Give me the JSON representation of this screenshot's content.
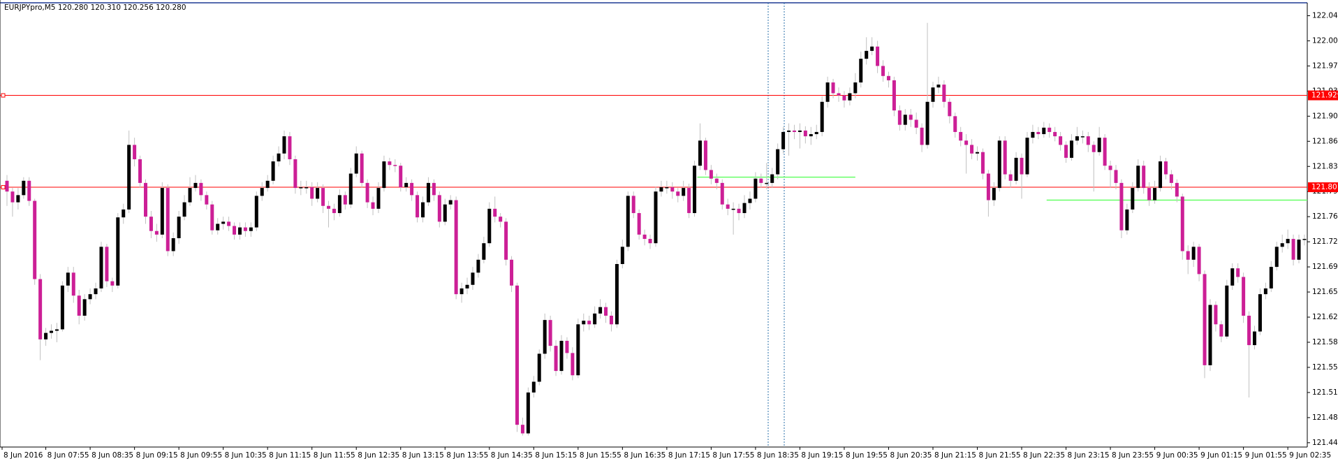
{
  "chart_data": {
    "type": "candlestick",
    "title": "EURJPYpro,M5  120.280 120.310 120.256 120.280",
    "up_color": "#000000",
    "down_color": "#cc1f96",
    "ylim": [
      121.439,
      122.058
    ],
    "yticks": [
      {
        "value": 122.04,
        "label": "122.040"
      },
      122.005,
      {
        "value": 121.97,
        "label": "121.970"
      },
      121.935,
      {
        "value": 121.9,
        "label": "121.900"
      },
      121.865,
      {
        "value": 121.83,
        "label": "121.830"
      },
      121.795,
      {
        "value": 121.76,
        "label": "121.760"
      },
      121.725,
      {
        "value": 121.69,
        "label": "121.690"
      },
      121.655,
      {
        "value": 121.62,
        "label": "121.620"
      },
      121.585,
      {
        "value": 121.55,
        "label": "121.550"
      },
      121.515,
      {
        "value": 121.48,
        "label": "121.480"
      },
      121.445
    ],
    "x_tick_labels": [
      "8 Jun 2016",
      "8 Jun 07:55",
      "8 Jun 08:35",
      "8 Jun 09:15",
      "8 Jun 09:55",
      "8 Jun 10:35",
      "8 Jun 11:15",
      "8 Jun 11:55",
      "8 Jun 12:35",
      "8 Jun 13:15",
      "8 Jun 13:55",
      "8 Jun 14:35",
      "8 Jun 15:15",
      "8 Jun 15:55",
      "8 Jun 16:35",
      "8 Jun 17:15",
      "8 Jun 17:55",
      "8 Jun 18:35",
      "8 Jun 19:15",
      "8 Jun 19:55",
      "8 Jun 20:35",
      "8 Jun 21:15",
      "8 Jun 21:55",
      "8 Jun 22:35",
      "8 Jun 23:15",
      "8 Jun 23:55",
      "9 Jun 00:35",
      "9 Jun 01:15",
      "9 Jun 01:55",
      "9 Jun 02:35"
    ],
    "price_lines": [
      {
        "value": 121.929,
        "color": "#ff0000"
      },
      {
        "value": 121.801,
        "color": "#ff0000"
      }
    ],
    "level_lines": [
      {
        "value": 121.815,
        "color": "#66ff66"
      },
      {
        "value": 121.783,
        "color": "#66ff66"
      }
    ],
    "open": [
      121.81,
      121.795,
      121.78,
      121.79,
      121.81,
      121.782,
      121.673,
      121.589,
      121.598,
      121.601,
      121.603,
      121.664,
      121.682,
      121.65,
      121.622,
      121.645,
      121.652,
      121.66,
      121.718,
      121.67,
      121.664,
      121.759,
      121.77,
      121.86,
      121.84,
      121.807,
      121.76,
      121.74,
      121.735,
      121.8,
      121.712,
      121.73,
      121.76,
      121.78,
      121.8,
      121.807,
      121.79,
      121.777,
      121.741,
      121.75,
      121.753,
      121.747,
      121.735,
      121.745,
      121.74,
      121.745,
      121.789,
      121.8,
      121.81,
      121.837,
      121.848,
      121.872,
      121.84,
      121.8,
      121.801,
      121.801,
      121.785,
      121.8,
      121.775,
      121.771,
      121.765,
      121.79,
      121.777,
      121.82,
      121.848,
      121.807,
      121.78,
      121.771,
      121.8,
      121.837,
      121.832,
      121.831,
      121.801,
      121.807,
      121.79,
      121.759,
      121.78,
      121.807,
      121.79,
      121.753,
      121.777,
      121.783,
      121.652,
      121.66,
      121.665,
      121.682,
      121.7,
      121.723,
      121.771,
      121.76,
      121.753,
      121.7,
      121.664,
      121.47,
      121.458,
      121.515,
      121.53,
      121.569,
      121.616,
      121.58,
      121.545,
      121.587,
      121.57,
      121.539,
      121.61,
      121.615,
      121.61,
      121.625,
      121.634,
      121.622,
      121.61,
      121.694,
      121.718,
      121.789,
      121.765,
      121.735,
      121.729,
      121.723,
      121.795,
      121.801,
      121.801,
      121.795,
      121.789,
      121.8,
      121.765,
      121.831,
      121.866,
      121.825,
      121.813,
      121.807,
      121.777,
      121.771,
      121.771,
      121.765,
      121.779,
      121.785,
      121.813,
      121.807,
      121.807,
      121.819,
      121.854,
      121.878,
      121.88,
      121.878,
      121.88,
      121.872,
      121.875,
      121.878,
      121.92,
      121.947,
      121.932,
      121.929,
      121.922,
      121.932,
      121.947,
      121.98,
      121.991,
      121.997,
      121.97,
      121.956,
      121.95,
      121.908,
      121.888,
      121.902,
      121.895,
      121.884,
      121.86,
      121.92,
      121.94,
      121.944,
      121.92,
      121.9,
      121.878,
      121.866,
      121.86,
      121.848,
      121.85,
      121.82,
      121.783,
      121.8,
      121.866,
      121.819,
      121.81,
      121.842,
      121.819,
      121.87,
      121.878,
      121.875,
      121.884,
      121.878,
      121.872,
      121.86,
      121.842,
      121.866,
      121.872,
      121.872,
      121.86,
      121.85,
      121.87,
      121.831,
      121.825,
      121.807,
      121.741,
      121.77,
      121.8,
      121.831,
      121.8,
      121.783,
      121.8,
      121.837,
      121.819,
      121.807,
      121.788,
      121.712,
      121.7,
      121.718,
      121.68,
      121.553,
      121.637,
      121.61,
      121.593,
      121.664,
      121.688,
      121.676,
      121.622,
      121.581,
      121.6,
      121.652,
      121.66,
      121.69,
      121.718,
      121.723,
      121.729,
      121.7,
      121.728
    ],
    "high": [
      121.818,
      121.8,
      121.8,
      121.815,
      121.815,
      121.785,
      121.68,
      121.605,
      121.61,
      121.612,
      121.67,
      121.69,
      121.69,
      121.658,
      121.652,
      121.66,
      121.668,
      121.725,
      121.722,
      121.675,
      121.765,
      121.778,
      121.88,
      121.87,
      121.845,
      121.812,
      121.768,
      121.75,
      121.808,
      121.805,
      121.738,
      121.768,
      121.79,
      121.815,
      121.818,
      121.812,
      121.795,
      121.782,
      121.758,
      121.76,
      121.76,
      121.752,
      121.752,
      121.752,
      121.752,
      121.795,
      121.808,
      121.818,
      121.845,
      121.858,
      121.88,
      121.878,
      121.845,
      121.81,
      121.81,
      121.808,
      121.808,
      121.805,
      121.782,
      121.778,
      121.798,
      121.795,
      121.828,
      121.858,
      121.852,
      121.812,
      121.788,
      121.808,
      121.845,
      121.842,
      121.84,
      121.835,
      121.815,
      121.812,
      121.795,
      121.788,
      121.815,
      121.812,
      121.795,
      121.785,
      121.79,
      121.788,
      121.668,
      121.675,
      121.69,
      121.708,
      121.732,
      121.78,
      121.788,
      121.765,
      121.758,
      121.705,
      121.668,
      121.48,
      121.522,
      121.538,
      121.575,
      121.625,
      121.622,
      121.588,
      121.595,
      121.592,
      121.578,
      121.618,
      121.625,
      121.622,
      121.635,
      121.645,
      121.64,
      121.628,
      121.7,
      121.728,
      121.795,
      121.795,
      121.77,
      121.742,
      121.735,
      121.802,
      121.81,
      121.81,
      121.808,
      121.8,
      121.81,
      121.806,
      121.838,
      121.89,
      121.87,
      121.832,
      121.82,
      121.812,
      121.785,
      121.78,
      121.778,
      121.79,
      121.795,
      121.822,
      121.82,
      121.835,
      121.828,
      121.862,
      121.885,
      121.89,
      121.888,
      121.89,
      121.886,
      121.885,
      121.888,
      121.928,
      121.955,
      121.952,
      121.94,
      121.935,
      121.94,
      121.96,
      121.99,
      122.01,
      122.01,
      122.005,
      121.978,
      121.962,
      121.955,
      121.915,
      121.91,
      121.91,
      121.905,
      121.89,
      122.03,
      121.948,
      121.955,
      121.95,
      121.925,
      121.905,
      121.885,
      121.875,
      121.868,
      121.858,
      121.855,
      121.825,
      121.808,
      121.872,
      121.872,
      121.825,
      121.85,
      121.848,
      121.878,
      121.888,
      121.885,
      121.892,
      121.89,
      121.885,
      121.878,
      121.865,
      121.875,
      121.885,
      121.88,
      121.878,
      121.865,
      121.885,
      121.875,
      121.838,
      121.832,
      121.812,
      121.778,
      121.808,
      121.84,
      121.838,
      121.808,
      121.81,
      121.845,
      121.842,
      121.825,
      121.812,
      121.792,
      121.72,
      121.725,
      121.722,
      121.685,
      121.645,
      121.642,
      121.615,
      121.672,
      121.695,
      121.695,
      121.682,
      121.628,
      121.608,
      121.66,
      121.668,
      121.698,
      121.725,
      121.735,
      121.742,
      121.735,
      121.735,
      121.735
    ],
    "low": [
      121.775,
      121.76,
      121.77,
      121.785,
      121.775,
      121.665,
      121.56,
      121.58,
      121.59,
      121.585,
      121.6,
      121.655,
      121.64,
      121.61,
      121.615,
      121.638,
      121.645,
      121.655,
      121.662,
      121.655,
      121.66,
      121.75,
      121.765,
      121.83,
      121.8,
      121.75,
      121.73,
      121.725,
      121.73,
      121.705,
      121.705,
      121.722,
      121.755,
      121.775,
      121.795,
      121.782,
      121.77,
      121.735,
      121.735,
      121.742,
      121.74,
      121.728,
      121.728,
      121.732,
      121.732,
      121.74,
      121.782,
      121.795,
      121.805,
      121.83,
      121.84,
      121.832,
      121.792,
      121.79,
      121.792,
      121.775,
      121.78,
      121.765,
      121.745,
      121.755,
      121.76,
      121.77,
      121.772,
      121.815,
      121.8,
      121.772,
      121.762,
      121.765,
      121.795,
      121.825,
      121.822,
      121.795,
      121.795,
      121.782,
      121.752,
      121.752,
      121.775,
      121.782,
      121.745,
      121.748,
      121.77,
      121.645,
      121.64,
      121.652,
      121.658,
      121.675,
      121.695,
      121.718,
      121.752,
      121.745,
      121.692,
      121.655,
      121.46,
      121.455,
      121.455,
      121.508,
      121.525,
      121.562,
      121.572,
      121.538,
      121.54,
      121.562,
      121.532,
      121.535,
      121.6,
      121.602,
      121.605,
      121.618,
      121.612,
      121.6,
      121.605,
      121.688,
      121.712,
      121.758,
      121.728,
      121.72,
      121.715,
      121.718,
      121.788,
      121.792,
      121.785,
      121.78,
      121.782,
      121.758,
      121.76,
      121.825,
      121.818,
      121.805,
      121.798,
      121.77,
      121.762,
      121.735,
      121.755,
      121.758,
      121.77,
      121.78,
      121.8,
      121.798,
      121.8,
      121.812,
      121.848,
      121.845,
      121.868,
      121.855,
      121.862,
      121.86,
      121.868,
      121.872,
      121.912,
      121.925,
      121.92,
      121.912,
      121.915,
      121.925,
      121.94,
      121.972,
      121.985,
      121.96,
      121.948,
      121.94,
      121.9,
      121.88,
      121.88,
      121.885,
      121.875,
      121.85,
      121.855,
      121.912,
      121.932,
      121.912,
      121.89,
      121.87,
      121.858,
      121.82,
      121.84,
      121.838,
      121.812,
      121.76,
      121.775,
      121.795,
      121.812,
      121.8,
      121.805,
      121.785,
      121.815,
      121.862,
      121.868,
      121.87,
      121.87,
      121.865,
      121.852,
      121.835,
      121.838,
      121.86,
      121.862,
      121.85,
      121.795,
      121.845,
      121.825,
      121.8,
      121.798,
      121.73,
      121.735,
      121.765,
      121.795,
      121.792,
      121.775,
      121.778,
      121.795,
      121.812,
      121.798,
      121.78,
      121.7,
      121.68,
      121.69,
      121.67,
      121.535,
      121.545,
      121.6,
      121.585,
      121.59,
      121.658,
      121.668,
      121.612,
      121.508,
      121.575,
      121.595,
      121.645,
      121.655,
      121.685,
      121.71,
      121.715,
      121.692,
      121.695,
      121.72
    ],
    "close": [
      121.795,
      121.78,
      121.79,
      121.81,
      121.782,
      121.673,
      121.589,
      121.598,
      121.601,
      121.603,
      121.664,
      121.682,
      121.65,
      121.622,
      121.645,
      121.652,
      121.66,
      121.718,
      121.67,
      121.664,
      121.759,
      121.77,
      121.86,
      121.84,
      121.807,
      121.76,
      121.74,
      121.735,
      121.8,
      121.712,
      121.73,
      121.76,
      121.78,
      121.8,
      121.807,
      121.79,
      121.777,
      121.741,
      121.75,
      121.753,
      121.747,
      121.735,
      121.745,
      121.74,
      121.745,
      121.789,
      121.8,
      121.81,
      121.837,
      121.848,
      121.872,
      121.84,
      121.8,
      121.801,
      121.801,
      121.785,
      121.8,
      121.775,
      121.771,
      121.765,
      121.79,
      121.777,
      121.82,
      121.848,
      121.807,
      121.78,
      121.771,
      121.8,
      121.837,
      121.832,
      121.831,
      121.801,
      121.807,
      121.79,
      121.759,
      121.78,
      121.807,
      121.79,
      121.753,
      121.777,
      121.783,
      121.652,
      121.66,
      121.665,
      121.682,
      121.7,
      121.723,
      121.771,
      121.76,
      121.753,
      121.7,
      121.664,
      121.47,
      121.458,
      121.515,
      121.53,
      121.569,
      121.616,
      121.58,
      121.545,
      121.587,
      121.57,
      121.539,
      121.61,
      121.615,
      121.61,
      121.625,
      121.634,
      121.622,
      121.61,
      121.694,
      121.718,
      121.789,
      121.765,
      121.735,
      121.729,
      121.723,
      121.795,
      121.801,
      121.801,
      121.795,
      121.789,
      121.8,
      121.765,
      121.831,
      121.866,
      121.825,
      121.813,
      121.807,
      121.777,
      121.771,
      121.771,
      121.765,
      121.779,
      121.785,
      121.813,
      121.807,
      121.807,
      121.819,
      121.854,
      121.878,
      121.88,
      121.878,
      121.88,
      121.872,
      121.875,
      121.878,
      121.92,
      121.947,
      121.932,
      121.929,
      121.922,
      121.932,
      121.947,
      121.98,
      121.991,
      121.997,
      121.97,
      121.956,
      121.95,
      121.908,
      121.888,
      121.902,
      121.895,
      121.884,
      121.86,
      121.92,
      121.94,
      121.944,
      121.92,
      121.9,
      121.878,
      121.866,
      121.86,
      121.848,
      121.85,
      121.82,
      121.783,
      121.8,
      121.866,
      121.819,
      121.81,
      121.842,
      121.819,
      121.87,
      121.878,
      121.875,
      121.884,
      121.878,
      121.872,
      121.86,
      121.842,
      121.866,
      121.872,
      121.872,
      121.86,
      121.85,
      121.87,
      121.831,
      121.825,
      121.807,
      121.741,
      121.77,
      121.8,
      121.831,
      121.8,
      121.783,
      121.8,
      121.837,
      121.819,
      121.807,
      121.788,
      121.712,
      121.7,
      121.718,
      121.68,
      121.553,
      121.637,
      121.61,
      121.593,
      121.664,
      121.688,
      121.676,
      121.622,
      121.581,
      121.6,
      121.652,
      121.66,
      121.69,
      121.718,
      121.723,
      121.729,
      121.7,
      121.728,
      121.729
    ]
  }
}
